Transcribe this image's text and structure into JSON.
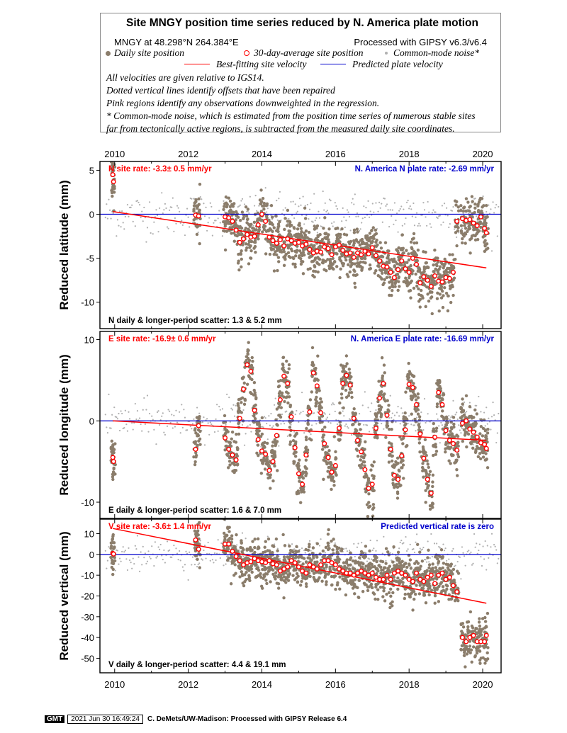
{
  "legend": {
    "title": "Site MNGY position time series reduced by N. America plate motion",
    "location": "MNGY at 48.298°N 264.384°E",
    "processing": "Processed with GIPSY v6.3/v6.4",
    "daily_label": "Daily site position",
    "avg_label": "30-day-average site position",
    "noise_label": "Common-mode noise*",
    "best_label": "Best-fitting site velocity",
    "pred_label": "Predicted plate velocity",
    "notes": [
      "All velocities are given relative to IGS14.",
      "Dotted vertical lines identify offsets that have been repaired",
      "Pink regions identify any observations downweighted in the regression.",
      "* Common-mode noise, which is estimated from the position time series of numerous stable sites",
      "far from tectonically active regions, is subtracted from the measured daily site coordinates."
    ],
    "colors": {
      "daily": "#8b7d6b",
      "avg_edge": "#ff0000",
      "noise": "#b0b0b0",
      "best": "#ff0000",
      "pred": "#0000cc"
    }
  },
  "footer": {
    "logo": "GMT",
    "timestamp": "2021 Jun 30 16:49:24",
    "credit": "C. DeMets/UW-Madison: Processed with GIPSY Release 6.4"
  },
  "chart_data": [
    {
      "type": "scatter",
      "ylabel": "Reduced latitude (mm)",
      "xlim": [
        2009.6,
        2020.5
      ],
      "ylim": [
        -13,
        6
      ],
      "yticks": [
        5,
        0,
        -5,
        -10
      ],
      "xticks": [
        2010,
        2012,
        2014,
        2016,
        2018,
        2020
      ],
      "rate_label": "N site rate:  -3.3± 0.5 mm/yr",
      "plate_label": "N. America N plate rate: -2.69 mm/yr",
      "scatter_label": "N daily & longer-period scatter:   1.3 &   5.2 mm",
      "best_fit": {
        "x": [
          2009.95,
          2020.1
        ],
        "y": [
          0.3,
          -6.1
        ]
      },
      "predicted": {
        "x": [
          2009.6,
          2020.5
        ],
        "y": [
          0,
          0
        ]
      },
      "avg_30day": {
        "x": [
          2009.95,
          2009.97,
          2012.2,
          2012.28,
          2013.0,
          2013.1,
          2013.2,
          2013.3,
          2013.4,
          2013.5,
          2013.6,
          2013.7,
          2013.8,
          2013.9,
          2014.0,
          2014.1,
          2014.2,
          2014.3,
          2014.4,
          2014.5,
          2014.6,
          2014.7,
          2014.8,
          2014.9,
          2015.0,
          2015.1,
          2015.2,
          2015.3,
          2015.4,
          2015.5,
          2015.6,
          2015.7,
          2015.8,
          2015.9,
          2016.0,
          2016.1,
          2016.2,
          2016.3,
          2016.4,
          2016.5,
          2016.6,
          2016.7,
          2016.8,
          2016.9,
          2017.0,
          2017.1,
          2017.2,
          2017.3,
          2017.4,
          2017.5,
          2017.6,
          2017.7,
          2017.8,
          2017.9,
          2018.0,
          2018.1,
          2018.2,
          2018.3,
          2018.4,
          2018.5,
          2018.6,
          2018.7,
          2018.8,
          2018.9,
          2019.0,
          2019.1,
          2019.2,
          2019.3,
          2019.45,
          2019.55,
          2019.65,
          2019.75,
          2019.85,
          2019.95,
          2020.05,
          2020.1
        ],
        "y": [
          4.5,
          3.7,
          -0.1,
          -0.2,
          -0.3,
          -0.4,
          -0.8,
          -1.8,
          -3.2,
          -2.8,
          -2.3,
          -2.6,
          -2.5,
          -1.2,
          0.0,
          -0.8,
          -2.6,
          -3.0,
          -3.3,
          -2.9,
          -3.6,
          -2.8,
          -3.0,
          -3.3,
          -3.2,
          -3.6,
          -3.4,
          -4.0,
          -4.4,
          -4.2,
          -4.3,
          -3.7,
          -3.9,
          -4.6,
          -3.7,
          -3.5,
          -4.1,
          -4.5,
          -4.4,
          -4.9,
          -4.4,
          -4.6,
          -4.2,
          -4.5,
          -3.8,
          -4.7,
          -5.3,
          -5.9,
          -6.0,
          -6.6,
          -7.2,
          -6.3,
          -5.3,
          -6.2,
          -6.6,
          -5.0,
          -5.7,
          -7.8,
          -7.1,
          -7.5,
          -8.2,
          -7.0,
          -7.6,
          -7.7,
          -7.2,
          -7.3,
          -6.6,
          -0.8,
          -0.5,
          -0.7,
          -0.6,
          -1.0,
          -1.3,
          -0.3,
          -1.6,
          -2.1
        ]
      }
    },
    {
      "type": "scatter",
      "ylabel": "Reduced longitude (mm)",
      "xlim": [
        2009.6,
        2020.5
      ],
      "ylim": [
        -12,
        11
      ],
      "yticks": [
        10,
        0,
        -10
      ],
      "xticks": [
        2010,
        2012,
        2014,
        2016,
        2018,
        2020
      ],
      "rate_label": "E site rate: -16.9± 0.6 mm/yr",
      "plate_label": "N. America E plate rate: -16.69 mm/yr",
      "scatter_label": "E daily & longer-period scatter:   1.6 &   7.0 mm",
      "best_fit": {
        "x": [
          2009.95,
          2020.1
        ],
        "y": [
          0.0,
          -2.4
        ]
      },
      "predicted": {
        "x": [
          2009.6,
          2020.5
        ],
        "y": [
          0,
          0
        ]
      },
      "avg_30day": {
        "x": [
          2009.95,
          2009.97,
          2012.2,
          2012.28,
          2013.0,
          2013.1,
          2013.2,
          2013.3,
          2013.4,
          2013.5,
          2013.6,
          2013.7,
          2013.8,
          2013.9,
          2014.0,
          2014.1,
          2014.2,
          2014.3,
          2014.4,
          2014.5,
          2014.6,
          2014.7,
          2014.8,
          2014.9,
          2015.0,
          2015.1,
          2015.2,
          2015.3,
          2015.4,
          2015.5,
          2015.6,
          2015.7,
          2015.8,
          2015.9,
          2016.0,
          2016.1,
          2016.2,
          2016.3,
          2016.4,
          2016.5,
          2016.6,
          2016.7,
          2016.8,
          2016.9,
          2017.0,
          2017.1,
          2017.2,
          2017.3,
          2017.4,
          2017.5,
          2017.6,
          2017.7,
          2017.8,
          2017.9,
          2018.0,
          2018.1,
          2018.2,
          2018.3,
          2018.4,
          2018.5,
          2018.6,
          2018.7,
          2018.8,
          2018.9,
          2019.0,
          2019.1,
          2019.2,
          2019.3,
          2019.45,
          2019.55,
          2019.65,
          2019.75,
          2019.85,
          2019.95,
          2020.05,
          2020.1
        ],
        "y": [
          -4.5,
          -5.0,
          -3.5,
          -0.6,
          -2.1,
          -3.5,
          -4.2,
          -4.8,
          0.3,
          3.9,
          6.9,
          6.1,
          1.3,
          -2.3,
          -3.7,
          -4.1,
          -6.1,
          -5.0,
          -1.8,
          2.6,
          5.5,
          4.6,
          0.5,
          -3.3,
          -6.5,
          -7.8,
          -4.2,
          1.1,
          5.9,
          4.3,
          1.0,
          -2.8,
          -4.5,
          -6.3,
          -5.5,
          -0.9,
          4.6,
          5.6,
          4.4,
          0.3,
          -2.4,
          -3.8,
          -6.0,
          -8.3,
          -7.8,
          -0.9,
          2.8,
          4.6,
          0.7,
          -3.5,
          -6.7,
          -7.2,
          -4.3,
          -1.1,
          4.5,
          4.1,
          2.0,
          -1.6,
          -4.6,
          -7.2,
          -8.9,
          -2.0,
          3.5,
          2.0,
          -1.2,
          -2.4,
          -2.8,
          -3.6,
          -0.3,
          0.0,
          -1.0,
          -1.4,
          -2.0,
          -2.7,
          -2.9,
          -3.4
        ]
      }
    },
    {
      "type": "scatter",
      "ylabel": "Reduced vertical (mm)",
      "xlim": [
        2009.6,
        2020.5
      ],
      "ylim": [
        -57,
        17
      ],
      "yticks": [
        10,
        0,
        -10,
        -20,
        -30,
        -40,
        -50
      ],
      "xticks": [
        2010,
        2012,
        2014,
        2016,
        2018,
        2020
      ],
      "rate_label": "V site rate:  -3.6± 1.4 mm/yr",
      "plate_label": "Predicted vertical rate is zero",
      "scatter_label": "V daily & longer-period scatter:   4.4 &  19.1 mm",
      "best_fit": {
        "x": [
          2009.95,
          2020.1
        ],
        "y": [
          12.5,
          -23.5
        ]
      },
      "predicted": {
        "x": [
          2009.6,
          2020.5
        ],
        "y": [
          0,
          0
        ]
      },
      "avg_30day": {
        "x": [
          2009.95,
          2009.97,
          2012.2,
          2012.28,
          2013.0,
          2013.1,
          2013.2,
          2013.3,
          2013.4,
          2013.5,
          2013.6,
          2013.7,
          2013.8,
          2013.9,
          2014.0,
          2014.1,
          2014.2,
          2014.3,
          2014.4,
          2014.5,
          2014.6,
          2014.7,
          2014.8,
          2014.9,
          2015.0,
          2015.1,
          2015.2,
          2015.3,
          2015.4,
          2015.5,
          2015.6,
          2015.7,
          2015.8,
          2015.9,
          2016.0,
          2016.1,
          2016.2,
          2016.3,
          2016.4,
          2016.5,
          2016.6,
          2016.7,
          2016.8,
          2016.9,
          2017.0,
          2017.1,
          2017.2,
          2017.3,
          2017.4,
          2017.5,
          2017.6,
          2017.7,
          2017.8,
          2017.9,
          2018.0,
          2018.1,
          2018.2,
          2018.3,
          2018.4,
          2018.5,
          2018.6,
          2018.7,
          2018.8,
          2018.9,
          2019.0,
          2019.1,
          2019.2,
          2019.3,
          2019.45,
          2019.55,
          2019.65,
          2019.75,
          2019.85,
          2019.95,
          2020.05,
          2020.1
        ],
        "y": [
          0.5,
          0.2,
          7.0,
          2.5,
          5.0,
          5.0,
          1.5,
          -1.0,
          -3.0,
          -5.0,
          -4.0,
          -3.5,
          -2.0,
          -3.0,
          -3.5,
          -4.0,
          -3.0,
          -4.5,
          -5.0,
          -8.0,
          -7.0,
          -6.0,
          -3.0,
          -4.0,
          -6.0,
          -8.0,
          -9.0,
          -5.0,
          -6.0,
          -7.0,
          -5.0,
          -3.0,
          -3.0,
          -4.0,
          -5.0,
          -7.0,
          -8.0,
          -9.0,
          -9.0,
          -10.0,
          -9.0,
          -8.0,
          -9.0,
          -10.0,
          -9.0,
          -11.0,
          -12.0,
          -12.0,
          -10.0,
          -12.0,
          -9.0,
          -8.0,
          -9.0,
          -10.0,
          -12.0,
          -13.0,
          -9.0,
          -12.0,
          -13.0,
          -11.0,
          -10.0,
          -14.0,
          -10.0,
          -9.0,
          -12.0,
          -11.0,
          -15.0,
          -18.0,
          -40.0,
          -42.0,
          -40.0,
          -39.0,
          -42.0,
          -42.0,
          -42.0,
          -39.0
        ]
      }
    }
  ]
}
